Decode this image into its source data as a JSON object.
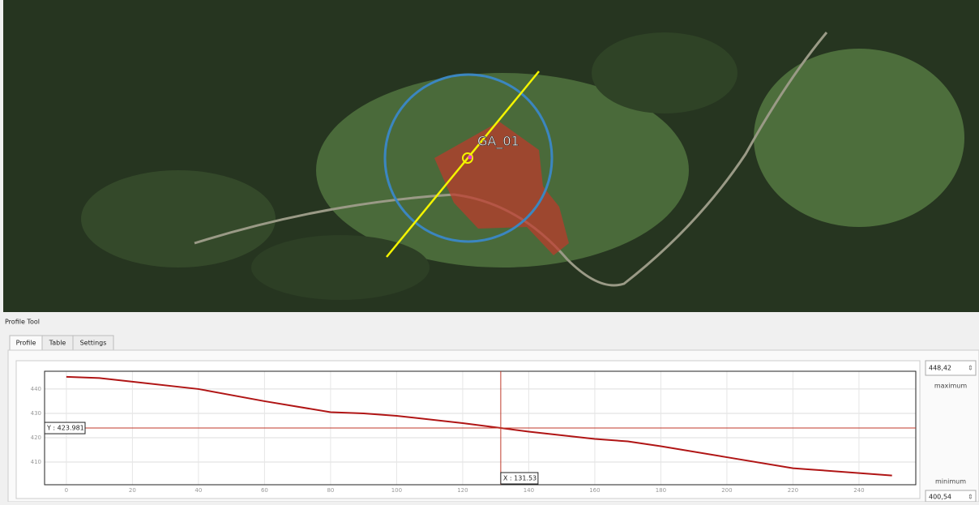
{
  "map": {
    "feature_label": "GA_01"
  },
  "panel": {
    "title": "Profile Tool",
    "tabs": [
      "Profile",
      "Table",
      "Settings"
    ],
    "maximum": {
      "value": "448,42",
      "label": "maximum"
    },
    "minimum": {
      "value": "400,54",
      "label": "minimum"
    }
  },
  "chart_data": {
    "type": "line",
    "x": [
      0,
      10,
      20,
      40,
      60,
      80,
      90,
      100,
      120,
      131.53,
      140,
      160,
      170,
      180,
      200,
      220,
      225,
      250
    ],
    "series": [
      {
        "color": "#b01515",
        "values": [
          445,
          444.5,
          443,
          440,
          435,
          430.5,
          430,
          429,
          426,
          424,
          422.5,
          419.5,
          418.5,
          416.5,
          412,
          407.5,
          407,
          404.5
        ]
      }
    ],
    "xlim": [
      -6.6,
      257.2
    ],
    "ylim": [
      400.7,
      447.3
    ],
    "xticks": [
      0,
      20,
      40,
      60,
      80,
      100,
      120,
      140,
      160,
      180,
      200,
      220,
      240
    ],
    "yticks": [
      410,
      420,
      430,
      440
    ],
    "grid": true,
    "cursor": {
      "x": 131.53,
      "y": 423.981,
      "x_label": "X : 131.53",
      "y_label": "Y : 423.981"
    }
  }
}
